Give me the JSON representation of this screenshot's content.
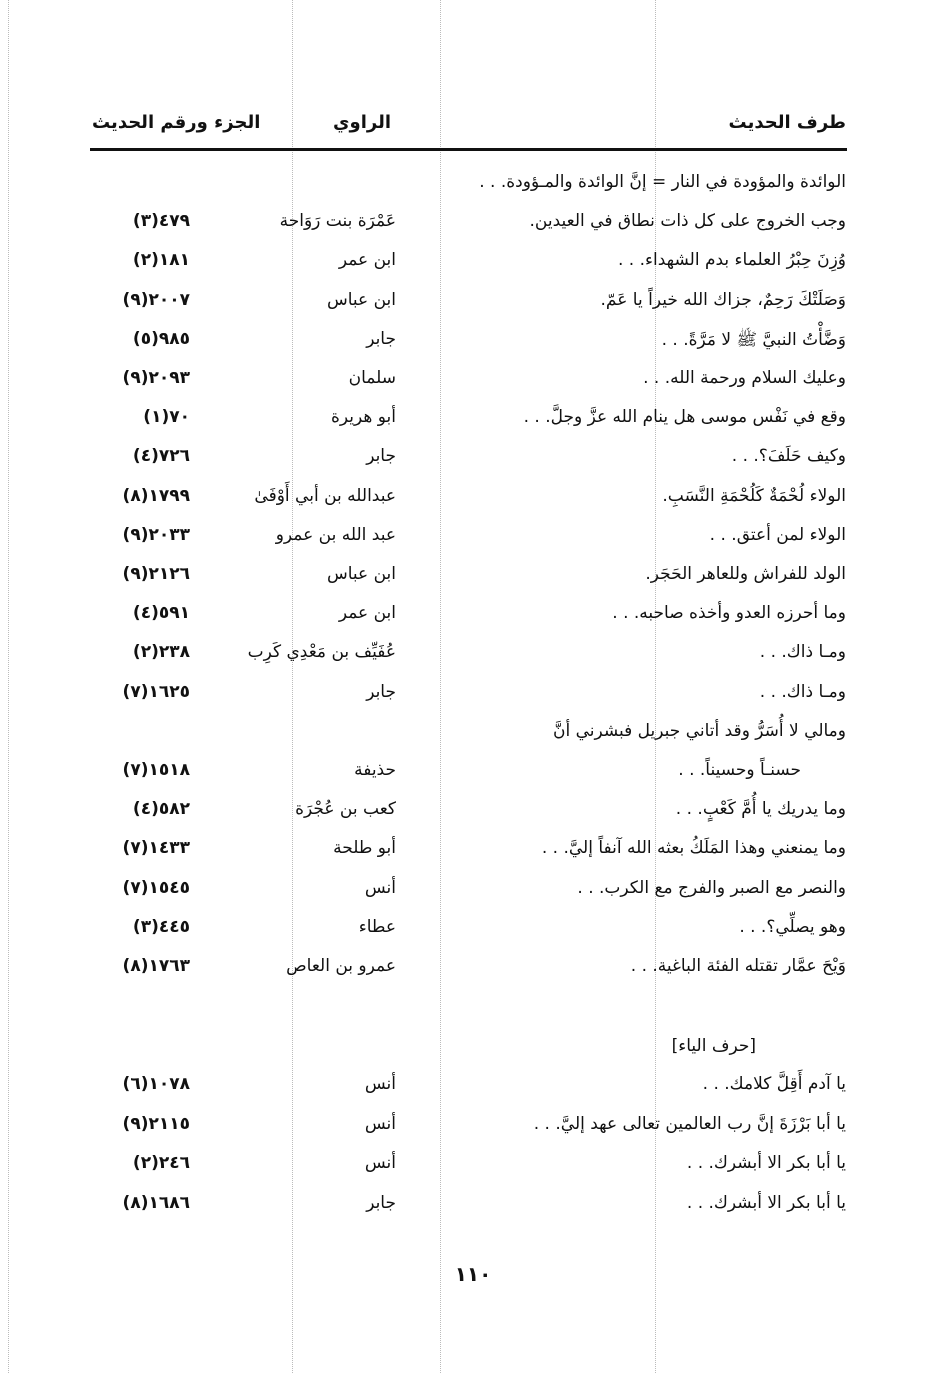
{
  "header": {
    "col_text": "طرف الحديث",
    "col_narrator": "الراوي",
    "col_ref": "الجزء ورقم الحديث"
  },
  "rows": [
    {
      "text": "الوائدة والمؤودة في النار = إنَّ الوائدة والمـؤودة. . .",
      "narrator": "",
      "ref": ""
    },
    {
      "text": "وجب الخروج على كل ذات نطاق في العيدين.",
      "narrator": "عَمْرَة بنت رَوَاحة",
      "ref": "٤٧٩(٣)"
    },
    {
      "text": "وُزِنَ حِبْرُ العلماء بدم الشهداء. . .",
      "narrator": "ابن عمر",
      "ref": "١٨١(٢)"
    },
    {
      "text": "وَصَلَتْكَ رَحِمٌ، جزاك الله خيراً يا عَمّ.",
      "narrator": "ابن عباس",
      "ref": "٢٠٠٧(٩)"
    },
    {
      "text": "وَضَّأْتُ النبيَّ ﷺ لا مَرَّةً. . .",
      "narrator": "جابر",
      "ref": "٩٨٥(٥)"
    },
    {
      "text": "وعليك السلام ورحمة الله. . .",
      "narrator": "سلمان",
      "ref": "٢٠٩٣(٩)"
    },
    {
      "text": "وقع في نَفْس موسى هل ينام الله عزَّ وجلَّ. . .",
      "narrator": "أبو هريرة",
      "ref": "٧٠(١)"
    },
    {
      "text": "وكيف حَلَفَ؟. . .",
      "narrator": "جابر",
      "ref": "٧٢٦(٤)"
    },
    {
      "text": "الولاء لُحْمَةٌ كَلُحْمَةِ النَّسَبِ.",
      "narrator": "عبدالله بن أبي أَوْفَىٰ",
      "ref": "١٧٩٩(٨)"
    },
    {
      "text": "الولاء لمن أعتق. . .",
      "narrator": "عبد الله بن عمرو",
      "ref": "٢٠٣٣(٩)"
    },
    {
      "text": "الولد للفراش وللعاهر الحَجَر.",
      "narrator": "ابن عباس",
      "ref": "٢١٢٦(٩)"
    },
    {
      "text": "وما أحرزه العدو وأخذه صاحبه. . .",
      "narrator": "ابن عمر",
      "ref": "٥٩١(٤)"
    },
    {
      "text": "ومـا ذاك. . .",
      "narrator": "عُفَيِّف بن مَعْدِي كَرِب",
      "ref": "٢٣٨(٢)"
    },
    {
      "text": "ومـا ذاك. . .",
      "narrator": "جابر",
      "ref": "١٦٢٥(٧)"
    },
    {
      "text": "ومالي لا أُسَرُّ وقد أتاني جبريل فبشرني أنَّ",
      "narrator": "",
      "ref": ""
    },
    {
      "text": "حسنـاً وحسيناً. . .",
      "narrator": "حذيفة",
      "ref": "١٥١٨(٧)",
      "indent": true
    },
    {
      "text": "وما يدريك يا أُمَّ كَعْبٍ. . .",
      "narrator": "كعب بن عُجْرَة",
      "ref": "٥٨٢(٤)"
    },
    {
      "text": "وما يمنعني وهذا المَلَكُ بعثه الله آنفاً إليَّ. . .",
      "narrator": "أبو طلحة",
      "ref": "١٤٣٣(٧)"
    },
    {
      "text": "والنصر مع الصبر والفرج مع الكرب. . .",
      "narrator": "أنس",
      "ref": "١٥٤٥(٧)"
    },
    {
      "text": "وهو يصلِّي؟. . .",
      "narrator": "عطاء",
      "ref": "٤٤٥(٣)"
    },
    {
      "text": "وَيْحَ عمَّار تقتله الفئة الباغية. . .",
      "narrator": "عمرو بن العاص",
      "ref": "١٧٦٣(٨)"
    }
  ],
  "section_title": "[حرف الياء]",
  "section_rows": [
    {
      "text": "يا آدم أَقِلَّ كلامك. . .",
      "narrator": "أنس",
      "ref": "١٠٧٨(٦)"
    },
    {
      "text": "يا أبا بَرْزَةَ إنَّ رب العالمين تعالى عهد إليَّ. . .",
      "narrator": "أنس",
      "ref": "٢١١٥(٩)"
    },
    {
      "text": "يا أبا بكر الا أبشرك. . .",
      "narrator": "أنس",
      "ref": "٢٤٦(٢)"
    },
    {
      "text": "يا أبا بكر الا أبشرك. . .",
      "narrator": "جابر",
      "ref": "١٦٨٦(٨)"
    }
  ],
  "page_number": "١١٠"
}
